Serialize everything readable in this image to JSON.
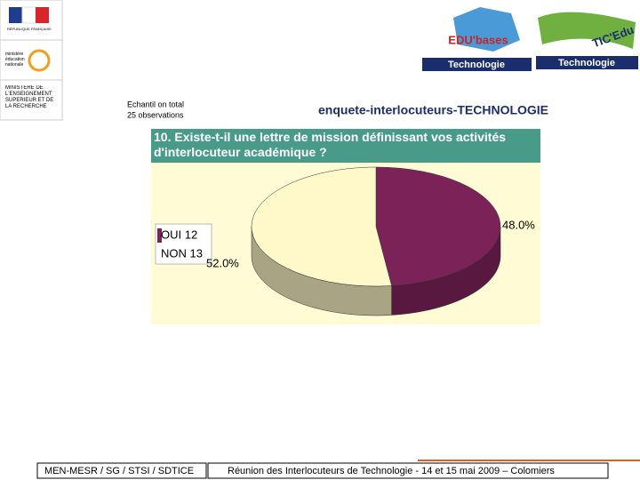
{
  "header": {
    "republique": "RÉPUBLIQUE FRANÇAISE",
    "ministere_education": "ministère éducation nationale",
    "ministere_recherche": "MINISTERE DE L'ENSEIGNEMENT SUPERIEUR ET DE LA RECHERCHE",
    "edubases": "EDU'bases",
    "edubases_sub": "Technologie",
    "ticedu": "TIC'Edu",
    "ticedu_sub": "Technologie"
  },
  "survey": {
    "sample": "Echantil on total",
    "observations": "25 observations",
    "name": "enquete-interlocuteurs-TECHNOLOGIE"
  },
  "chart_data": {
    "type": "pie",
    "title": "10. Existe-t-il une lettre de mission définissant vos activités d'interlocuteur académique ?",
    "categories": [
      "OUI 12",
      "NON 13"
    ],
    "values": [
      48.0,
      52.0
    ],
    "value_labels": [
      "48.0%",
      "52.0%"
    ],
    "colors": [
      "#7b2259",
      "#fff8c8"
    ]
  },
  "footer": {
    "left": "MEN-MESR / SG / STSI / SDTICE",
    "right": "Réunion des Interlocuteurs de Technologie - 14 et 15 mai 2009 – Colomiers"
  }
}
